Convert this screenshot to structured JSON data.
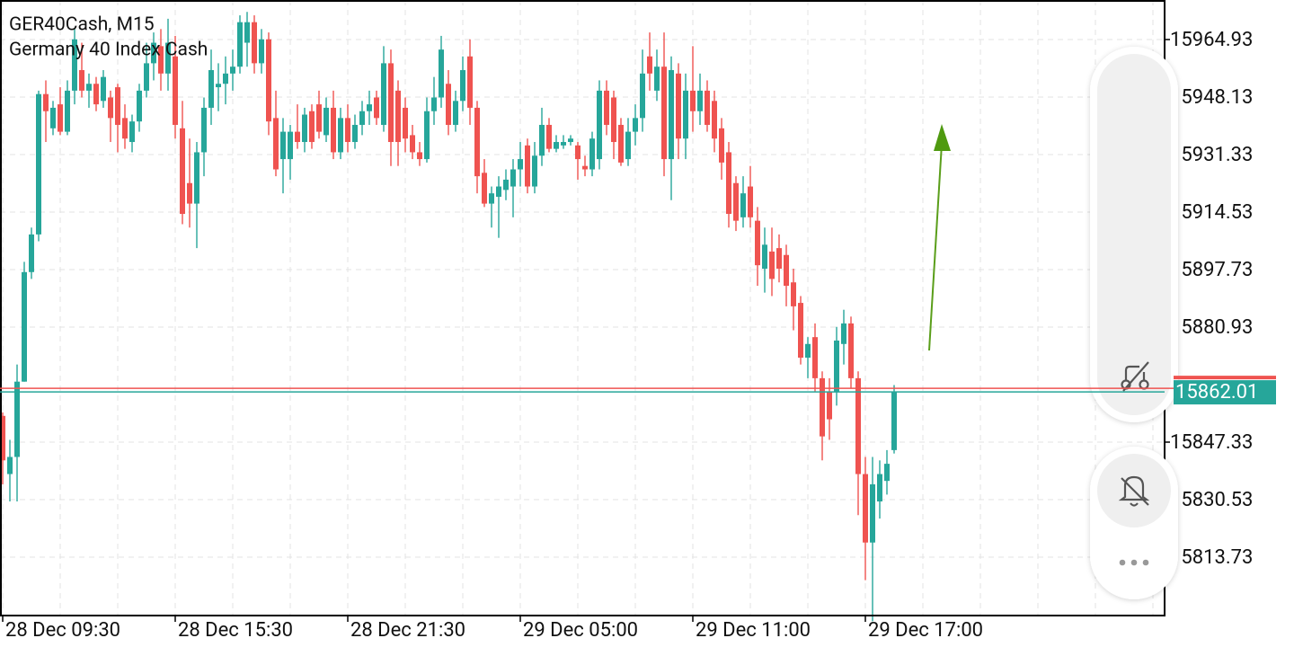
{
  "chart_data": {
    "type": "candlestick",
    "title": "GER40Cash, M15",
    "subtitle": "Germany 40 Index Cash",
    "up_color": "#26a69a",
    "down_color": "#ef5350",
    "ask_line": {
      "value": 15863.05,
      "color": "#ef5350"
    },
    "bid_color": "#26a69a",
    "grid": true,
    "ylim": [
      15796.67,
      15976.48
    ],
    "yticks": [
      15964.93,
      15948.13,
      15931.33,
      15914.53,
      15897.73,
      15880.93,
      15847.33,
      15830.53,
      15813.73
    ],
    "xlim": [
      -0.375,
      161.625
    ],
    "xticks": [
      {
        "value": 0,
        "label": "28 Dec 09:30"
      },
      {
        "value": 24,
        "label": "28 Dec 15:30"
      },
      {
        "value": 48,
        "label": "28 Dec 21:30"
      },
      {
        "value": 72,
        "label": "29 Dec 05:00"
      },
      {
        "value": 96,
        "label": "29 Dec 11:00"
      },
      {
        "value": 120,
        "label": "29 Dec 17:00"
      }
    ],
    "open": [
      15855,
      15838,
      15843,
      15865,
      15897,
      15908,
      15949,
      15939,
      15946,
      15938,
      15950,
      15956,
      15950,
      15952,
      15947,
      15948,
      15951,
      15942,
      15935,
      15941,
      15950,
      15958,
      15963,
      15955,
      15960,
      15939,
      15923,
      15917,
      15932,
      15945,
      15951,
      15952,
      15955,
      15957,
      15964,
      15970,
      15958,
      15965,
      15942,
      15930,
      15930,
      15938,
      15935,
      15944,
      15946,
      15937,
      15945,
      15932,
      15942,
      15935,
      15940,
      15944,
      15948,
      15940,
      15958,
      15950,
      15945,
      15937,
      15932,
      15930,
      15944,
      15948,
      15952,
      15940,
      15947,
      15960,
      15945,
      15926,
      15917,
      15919,
      15921,
      15922,
      15927,
      15934,
      15922,
      15931,
      15940,
      15933,
      15934,
      15935,
      15934,
      15928,
      15927,
      15930,
      15950,
      15948,
      15940,
      15930,
      15938,
      15942,
      15960,
      15950,
      15957,
      15930,
      15955,
      15936,
      15950,
      15944,
      15950,
      15947,
      15939,
      15932,
      15923,
      15913,
      15922,
      15912,
      15898,
      15903,
      15904,
      15902,
      15894,
      15888,
      15872,
      15878,
      15866,
      15862,
      15862,
      15876,
      15882,
      15866,
      15838,
      15818,
      15830,
      15836,
      15845
    ],
    "high": [
      15856,
      15848,
      15870,
      15900,
      15910,
      15950,
      15953,
      15947,
      15951,
      15953,
      15968,
      15964,
      15955,
      15954,
      15956,
      15950,
      15952,
      15946,
      15943,
      15952,
      15964,
      15967,
      15968,
      15971,
      15966,
      15947,
      15936,
      15935,
      15948,
      15962,
      15958,
      15960,
      15962,
      15972,
      15973,
      15972,
      15968,
      15967,
      15950,
      15942,
      15940,
      15946,
      15945,
      15946,
      15950,
      15948,
      15950,
      15945,
      15946,
      15943,
      15947,
      15950,
      15950,
      15963,
      15962,
      15953,
      15948,
      15940,
      15935,
      15948,
      15954,
      15966,
      15956,
      15950,
      15960,
      15965,
      15947,
      15930,
      15922,
      15925,
      15927,
      15930,
      15935,
      15936,
      15935,
      15945,
      15942,
      15937,
      15937,
      15937,
      15935,
      15931,
      15938,
      15953,
      15953,
      15950,
      15942,
      15942,
      15946,
      15962,
      15967,
      15962,
      15967,
      15960,
      15958,
      15955,
      15963,
      15955,
      15953,
      15950,
      15942,
      15935,
      15925,
      15925,
      15928,
      15916,
      15910,
      15910,
      15908,
      15905,
      15898,
      15890,
      15878,
      15882,
      15868,
      15866,
      15881,
      15886,
      15884,
      15868,
      15843,
      15843,
      15842,
      15845,
      15864
    ],
    "low": [
      15835,
      15830,
      15830,
      15865,
      15895,
      15906,
      15935,
      15937,
      15937,
      15937,
      15946,
      15948,
      15945,
      15944,
      15945,
      15935,
      15932,
      15933,
      15932,
      15938,
      15948,
      15953,
      15950,
      15950,
      15936,
      15911,
      15910,
      15904,
      15925,
      15940,
      15944,
      15946,
      15950,
      15955,
      15957,
      15955,
      15955,
      15937,
      15925,
      15920,
      15924,
      15933,
      15932,
      15933,
      15936,
      15935,
      15930,
      15930,
      15932,
      15933,
      15937,
      15940,
      15940,
      15938,
      15928,
      15928,
      15932,
      15930,
      15928,
      15929,
      15940,
      15945,
      15937,
      15938,
      15944,
      15940,
      15920,
      15916,
      15910,
      15907,
      15918,
      15913,
      15922,
      15920,
      15920,
      15928,
      15932,
      15932,
      15933,
      15934,
      15924,
      15925,
      15925,
      15927,
      15937,
      15930,
      15928,
      15928,
      15934,
      15938,
      15950,
      15947,
      15925,
      15918,
      15930,
      15930,
      15938,
      15940,
      15938,
      15932,
      15924,
      15910,
      15909,
      15910,
      15910,
      15893,
      15891,
      15890,
      15894,
      15887,
      15880,
      15870,
      15866,
      15862,
      15842,
      15848,
      15858,
      15870,
      15863,
      15826,
      15807,
      15795,
      15825,
      15832,
      15844
    ],
    "close": [
      15842,
      15843,
      15865,
      15897,
      15908,
      15949,
      15944,
      15945,
      15938,
      15950,
      15965,
      15950,
      15952,
      15946,
      15954,
      15942,
      15940,
      15936,
      15941,
      15950,
      15958,
      15964,
      15955,
      15964,
      15940,
      15914,
      15917,
      15932,
      15945,
      15956,
      15952,
      15955,
      15957,
      15970,
      15970,
      15958,
      15965,
      15941,
      15927,
      15938,
      15938,
      15935,
      15943,
      15935,
      15938,
      15945,
      15932,
      15942,
      15935,
      15940,
      15944,
      15946,
      15942,
      15958,
      15935,
      15935,
      15936,
      15932,
      15930,
      15944,
      15948,
      15962,
      15940,
      15947,
      15956,
      15945,
      15925,
      15917,
      15920,
      15922,
      15924,
      15927,
      15930,
      15922,
      15931,
      15940,
      15933,
      15935,
      15935,
      15936,
      15930,
      15927,
      15936,
      15950,
      15940,
      15935,
      15929,
      15938,
      15942,
      15955,
      15955,
      15957,
      15930,
      15956,
      15936,
      15950,
      15944,
      15950,
      15940,
      15936,
      15929,
      15914,
      15912,
      15920,
      15913,
      15899,
      15905,
      15895,
      15898,
      15893,
      15887,
      15872,
      15876,
      15866,
      15849,
      15854,
      15877,
      15882,
      15866,
      15838,
      15818,
      15835,
      15838,
      15841,
      15862.01
    ]
  }
}
